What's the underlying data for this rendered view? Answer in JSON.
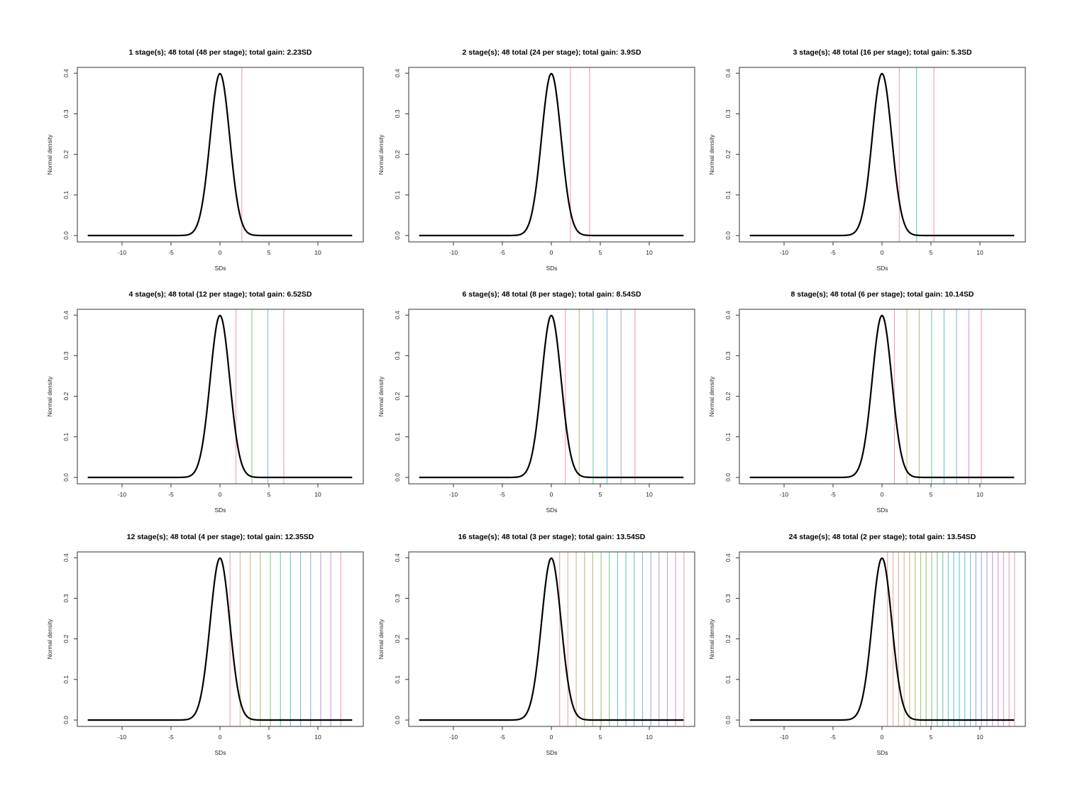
{
  "figure": {
    "ylabel": "Normal density",
    "xlabel": "SDs",
    "xticks": [
      -10,
      -5,
      0,
      5,
      10
    ],
    "yticks": [
      "0.0",
      "0.1",
      "0.2",
      "0.3",
      "0.4"
    ],
    "palette": [
      "#F2A7B0",
      "#E8B7A0",
      "#D4BE8C",
      "#B9C785",
      "#9ACC8F",
      "#7FD0AA",
      "#6FCFC6",
      "#74C8DD",
      "#8ABCEA",
      "#A8B0EC",
      "#C6A7E4",
      "#DEA2D2",
      "#EFA3BC"
    ],
    "curve_color": "#000000"
  },
  "chart_data": [
    {
      "type": "line",
      "title": "1 stage(s); 48 total (48 per stage); total gain: 2.23SD",
      "stages": 1,
      "total": 48,
      "per_stage": 48,
      "total_gain": 2.23,
      "vlines": [
        2.23
      ],
      "xlabel": "SDs",
      "ylabel": "Normal density",
      "xlim": [
        -13.5,
        13.5
      ],
      "ylim": [
        0,
        0.4
      ],
      "series": [
        {
          "name": "Normal density",
          "function": "dnorm(x,0,1)"
        }
      ]
    },
    {
      "type": "line",
      "title": "2 stage(s); 48 total (24 per stage); total gain: 3.9SD",
      "stages": 2,
      "total": 48,
      "per_stage": 24,
      "total_gain": 3.9,
      "vlines": [
        1.95,
        3.9
      ],
      "xlabel": "SDs",
      "ylabel": "Normal density",
      "xlim": [
        -13.5,
        13.5
      ],
      "ylim": [
        0,
        0.4
      ],
      "series": [
        {
          "name": "Normal density",
          "function": "dnorm(x,0,1)"
        }
      ]
    },
    {
      "type": "line",
      "title": "3 stage(s); 48 total (16 per stage); total gain: 5.3SD",
      "stages": 3,
      "total": 48,
      "per_stage": 16,
      "total_gain": 5.3,
      "vlines": [
        1.77,
        3.53,
        5.3
      ],
      "xlabel": "SDs",
      "ylabel": "Normal density",
      "xlim": [
        -13.5,
        13.5
      ],
      "ylim": [
        0,
        0.4
      ],
      "series": [
        {
          "name": "Normal density",
          "function": "dnorm(x,0,1)"
        }
      ]
    },
    {
      "type": "line",
      "title": "4 stage(s); 48 total (12 per stage); total gain: 6.52SD",
      "stages": 4,
      "total": 48,
      "per_stage": 12,
      "total_gain": 6.52,
      "vlines": [
        1.63,
        3.26,
        4.89,
        6.52
      ],
      "xlabel": "SDs",
      "ylabel": "Normal density",
      "xlim": [
        -13.5,
        13.5
      ],
      "ylim": [
        0,
        0.4
      ],
      "series": [
        {
          "name": "Normal density",
          "function": "dnorm(x,0,1)"
        }
      ]
    },
    {
      "type": "line",
      "title": "6 stage(s); 48 total (8 per stage); total gain: 8.54SD",
      "stages": 6,
      "total": 48,
      "per_stage": 8,
      "total_gain": 8.54,
      "vlines": [
        1.42,
        2.85,
        4.27,
        5.69,
        7.12,
        8.54
      ],
      "xlabel": "SDs",
      "ylabel": "Normal density",
      "xlim": [
        -13.5,
        13.5
      ],
      "ylim": [
        0,
        0.4
      ],
      "series": [
        {
          "name": "Normal density",
          "function": "dnorm(x,0,1)"
        }
      ]
    },
    {
      "type": "line",
      "title": "8 stage(s); 48 total (6 per stage); total gain: 10.14SD",
      "stages": 8,
      "total": 48,
      "per_stage": 6,
      "total_gain": 10.14,
      "vlines": [
        1.27,
        2.54,
        3.8,
        5.07,
        6.34,
        7.61,
        8.87,
        10.14
      ],
      "xlabel": "SDs",
      "ylabel": "Normal density",
      "xlim": [
        -13.5,
        13.5
      ],
      "ylim": [
        0,
        0.4
      ],
      "series": [
        {
          "name": "Normal density",
          "function": "dnorm(x,0,1)"
        }
      ]
    },
    {
      "type": "line",
      "title": "12 stage(s); 48 total (4 per stage); total gain: 12.35SD",
      "stages": 12,
      "total": 48,
      "per_stage": 4,
      "total_gain": 12.35,
      "vlines": [
        1.03,
        2.06,
        3.09,
        4.12,
        5.15,
        6.18,
        7.2,
        8.23,
        9.26,
        10.29,
        11.32,
        12.35
      ],
      "xlabel": "SDs",
      "ylabel": "Normal density",
      "xlim": [
        -13.5,
        13.5
      ],
      "ylim": [
        0,
        0.4
      ],
      "series": [
        {
          "name": "Normal density",
          "function": "dnorm(x,0,1)"
        }
      ]
    },
    {
      "type": "line",
      "title": "16 stage(s); 48 total (3 per stage); total gain: 13.54SD",
      "stages": 16,
      "total": 48,
      "per_stage": 3,
      "total_gain": 13.54,
      "vlines": [
        0.85,
        1.69,
        2.54,
        3.39,
        4.23,
        5.08,
        5.92,
        6.77,
        7.62,
        8.46,
        9.31,
        10.16,
        11.0,
        11.85,
        12.69,
        13.54
      ],
      "xlabel": "SDs",
      "ylabel": "Normal density",
      "xlim": [
        -13.5,
        13.5
      ],
      "ylim": [
        0,
        0.4
      ],
      "series": [
        {
          "name": "Normal density",
          "function": "dnorm(x,0,1)"
        }
      ]
    },
    {
      "type": "line",
      "title": "24 stage(s); 48 total (2 per stage); total gain: 13.54SD",
      "stages": 24,
      "total": 48,
      "per_stage": 2,
      "total_gain": 13.54,
      "vlines": [
        0.56,
        1.13,
        1.69,
        2.26,
        2.82,
        3.39,
        3.95,
        4.51,
        5.08,
        5.64,
        6.21,
        6.77,
        7.33,
        7.9,
        8.46,
        9.03,
        9.59,
        10.16,
        10.72,
        11.28,
        11.85,
        12.41,
        12.98,
        13.54
      ],
      "xlabel": "SDs",
      "ylabel": "Normal density",
      "xlim": [
        -13.5,
        13.5
      ],
      "ylim": [
        0,
        0.4
      ],
      "series": [
        {
          "name": "Normal density",
          "function": "dnorm(x,0,1)"
        }
      ]
    }
  ]
}
